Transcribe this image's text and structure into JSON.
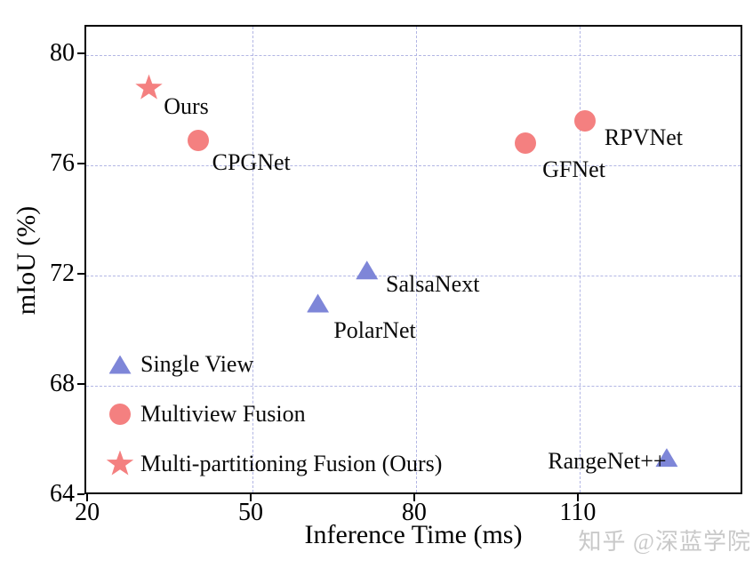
{
  "watermark": "知乎 @深蓝学院",
  "chart_data": {
    "type": "scatter",
    "title": "",
    "xlabel": "Inference Time (ms)",
    "ylabel": "mIoU (%)",
    "xlim": [
      19.5,
      140.2
    ],
    "ylim": [
      64,
      81.03
    ],
    "xticks": [
      20,
      50,
      80,
      110
    ],
    "yticks": [
      64,
      68,
      72,
      76,
      80
    ],
    "grid": true,
    "grid_x": [
      50,
      80,
      110
    ],
    "grid_y": [
      68,
      72,
      76,
      80
    ],
    "legend_position": "lower-left-inside",
    "series": [
      {
        "name": "Single View",
        "marker": "triangle",
        "color": "#7e86d8",
        "points": [
          {
            "label": "SalsaNext",
            "x": 71,
            "y": 72.2,
            "label_dx": 74,
            "label_dy": 16
          },
          {
            "label": "PolarNet",
            "x": 62,
            "y": 71.0,
            "label_dx": 64,
            "label_dy": 31
          },
          {
            "label": "RangeNet++",
            "x": 126,
            "y": 65.4,
            "label_dx": -67,
            "label_dy": 4
          }
        ]
      },
      {
        "name": "Multiview Fusion",
        "marker": "circle",
        "color": "#f48080",
        "points": [
          {
            "label": "CPGNet",
            "x": 40,
            "y": 76.9,
            "label_dx": 60,
            "label_dy": 25
          },
          {
            "label": "GFNet",
            "x": 100,
            "y": 76.8,
            "label_dx": 55,
            "label_dy": 30
          },
          {
            "label": "RPVNet",
            "x": 111,
            "y": 77.6,
            "label_dx": 66,
            "label_dy": 19
          }
        ]
      },
      {
        "name": "Multi-partitioning Fusion (Ours)",
        "marker": "star",
        "color": "#f48080",
        "points": [
          {
            "label": "Ours",
            "x": 31,
            "y": 78.8,
            "label_dx": 42,
            "label_dy": 21
          }
        ]
      }
    ]
  }
}
